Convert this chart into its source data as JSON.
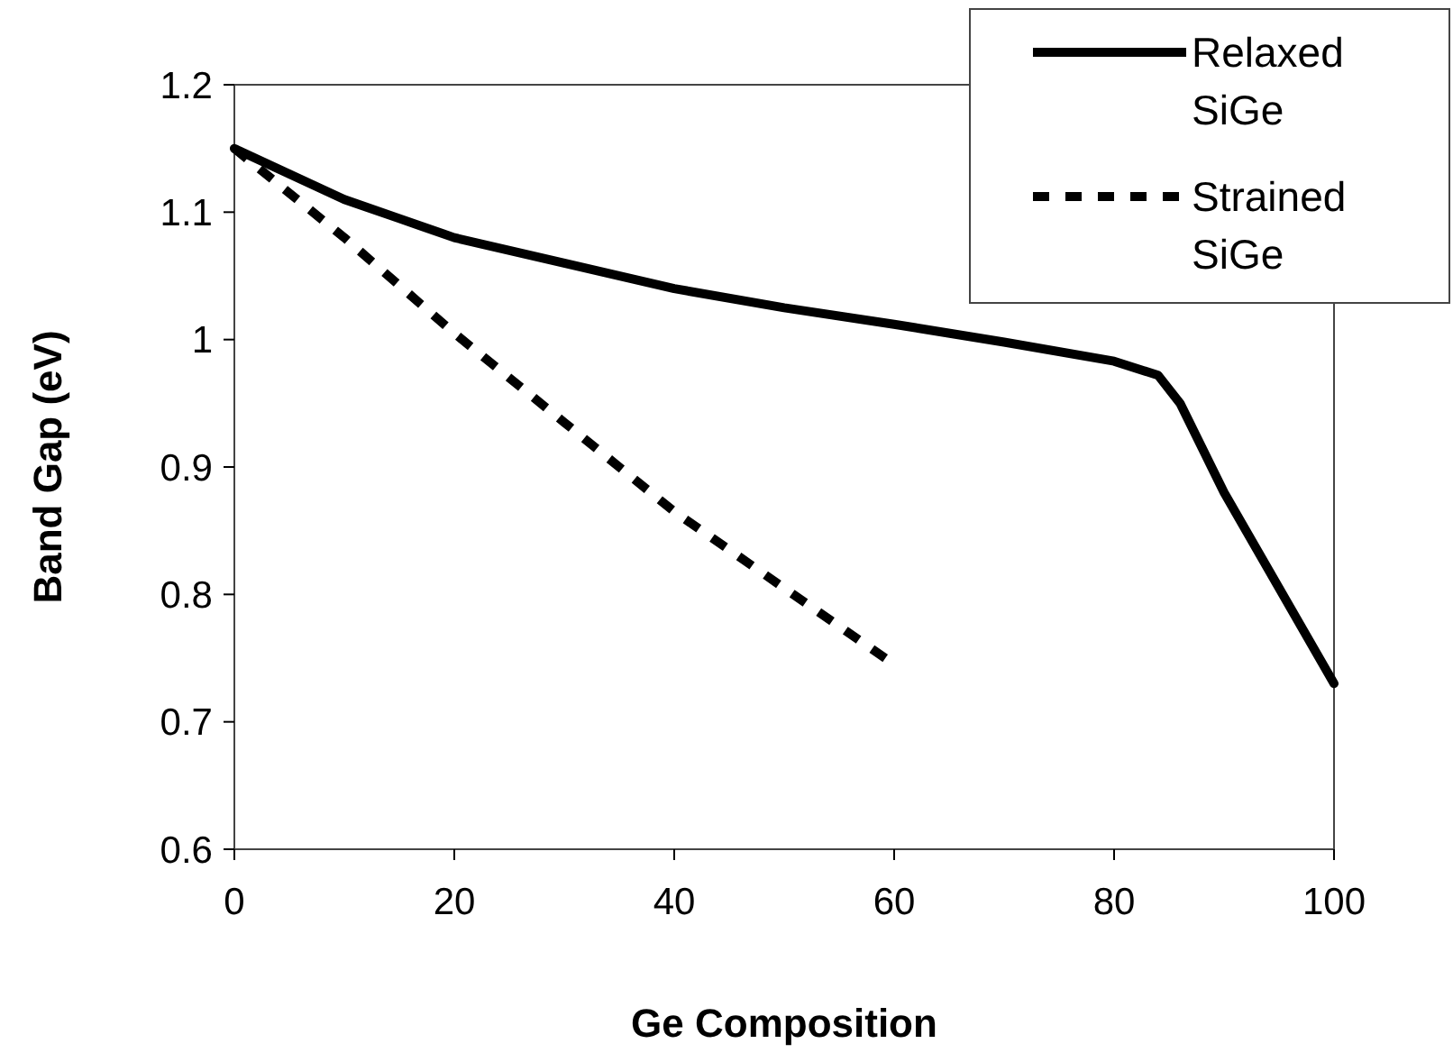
{
  "chart_data": {
    "type": "line",
    "xlabel": "Ge Composition",
    "ylabel": "Band Gap (eV)",
    "xlim": [
      0,
      100
    ],
    "xticks": [
      0,
      20,
      40,
      60,
      80,
      100
    ],
    "ylim": [
      0.6,
      1.2
    ],
    "yticks": [
      0.6,
      0.7,
      0.8,
      0.9,
      1,
      1.1,
      1.2
    ],
    "grid": false,
    "legend": "top right",
    "marker": "none",
    "series": [
      {
        "name": "Relaxed SiGe",
        "color": "#000000",
        "line_style": "solid",
        "x": [
          0,
          5,
          10,
          15,
          20,
          30,
          40,
          50,
          60,
          70,
          80,
          84,
          86,
          88,
          90,
          95,
          100
        ],
        "values": [
          1.15,
          1.13,
          1.11,
          1.095,
          1.08,
          1.06,
          1.04,
          1.025,
          1.012,
          0.998,
          0.983,
          0.972,
          0.95,
          0.915,
          0.88,
          0.805,
          0.73
        ]
      },
      {
        "name": "Strained SiGe",
        "color": "#000000",
        "line_style": "dashed",
        "x": [
          0,
          10,
          20,
          30,
          40,
          50,
          60
        ],
        "values": [
          1.15,
          1.08,
          1.005,
          0.935,
          0.865,
          0.805,
          0.745
        ]
      }
    ]
  }
}
